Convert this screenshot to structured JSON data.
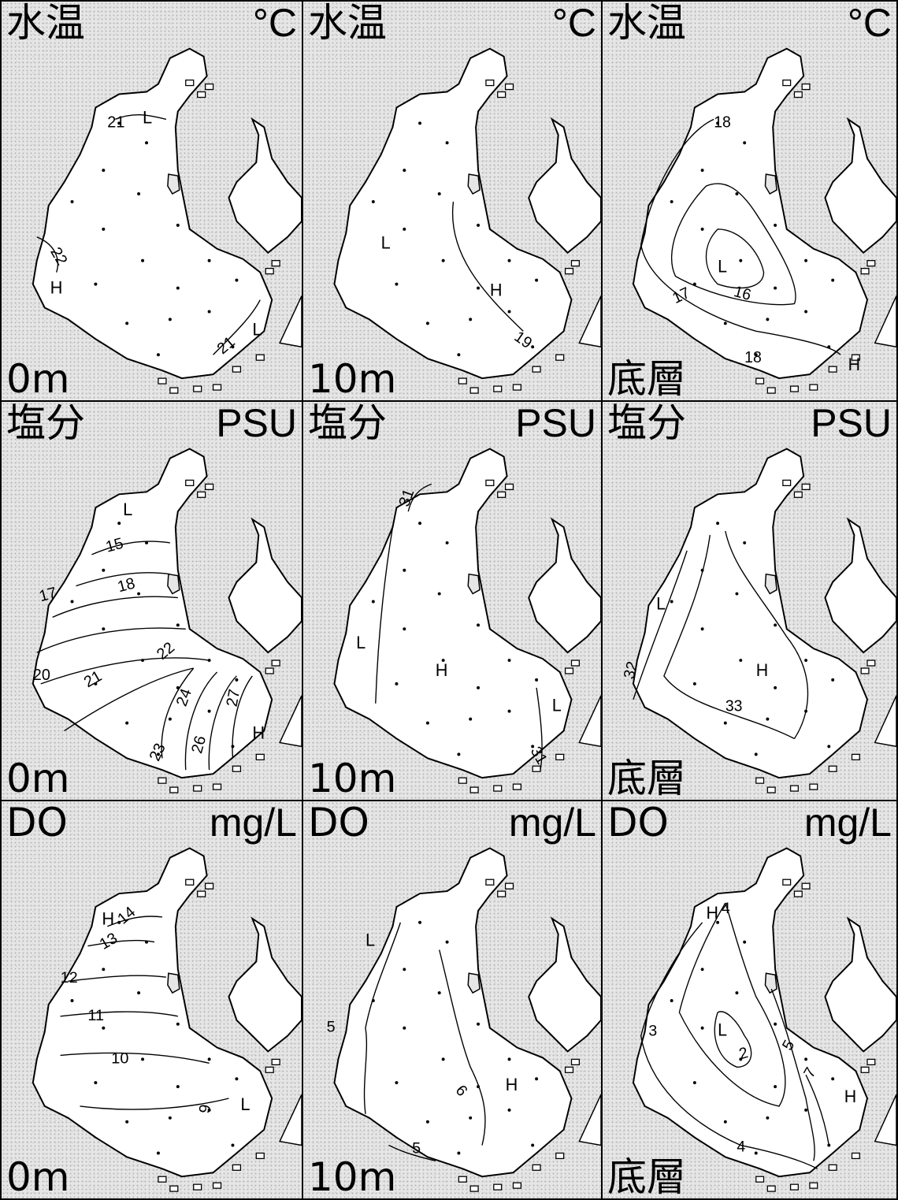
{
  "panels": [
    {
      "id": "temp-0m",
      "variable": "水温",
      "unit": "°C",
      "depth": "0m",
      "contour_labels": [
        "21",
        "22",
        "21"
      ],
      "markers": [
        "L",
        "H",
        "L"
      ]
    },
    {
      "id": "temp-10m",
      "variable": "水温",
      "unit": "°C",
      "depth": "10m",
      "contour_labels": [
        "19"
      ],
      "markers": [
        "L",
        "H"
      ]
    },
    {
      "id": "temp-bottom",
      "variable": "水温",
      "unit": "°C",
      "depth": "底層",
      "contour_labels": [
        "18",
        "17",
        "16",
        "18"
      ],
      "markers": [
        "L",
        "H"
      ]
    },
    {
      "id": "sal-0m",
      "variable": "塩分",
      "unit": "PSU",
      "depth": "0m",
      "contour_labels": [
        "15",
        "17",
        "18",
        "20",
        "21",
        "22",
        "24",
        "27",
        "23",
        "26"
      ],
      "markers": [
        "L",
        "H"
      ]
    },
    {
      "id": "sal-10m",
      "variable": "塩分",
      "unit": "PSU",
      "depth": "10m",
      "contour_labels": [
        "31",
        "31"
      ],
      "markers": [
        "L",
        "H",
        "L"
      ]
    },
    {
      "id": "sal-bottom",
      "variable": "塩分",
      "unit": "PSU",
      "depth": "底層",
      "contour_labels": [
        "32",
        "33"
      ],
      "markers": [
        "L",
        "H"
      ]
    },
    {
      "id": "do-0m",
      "variable": "DO",
      "unit": "mg/L",
      "depth": "0m",
      "contour_labels": [
        "14",
        "13",
        "12",
        "11",
        "10",
        "9"
      ],
      "markers": [
        "H",
        "L"
      ]
    },
    {
      "id": "do-10m",
      "variable": "DO",
      "unit": "mg/L",
      "depth": "10m",
      "contour_labels": [
        "5",
        "6",
        "5"
      ],
      "markers": [
        "L",
        "H"
      ]
    },
    {
      "id": "do-bottom",
      "variable": "DO",
      "unit": "mg/L",
      "depth": "底層",
      "contour_labels": [
        "4",
        "3",
        "2",
        "5",
        "7",
        "4"
      ],
      "markers": [
        "H",
        "L",
        "H"
      ]
    }
  ]
}
